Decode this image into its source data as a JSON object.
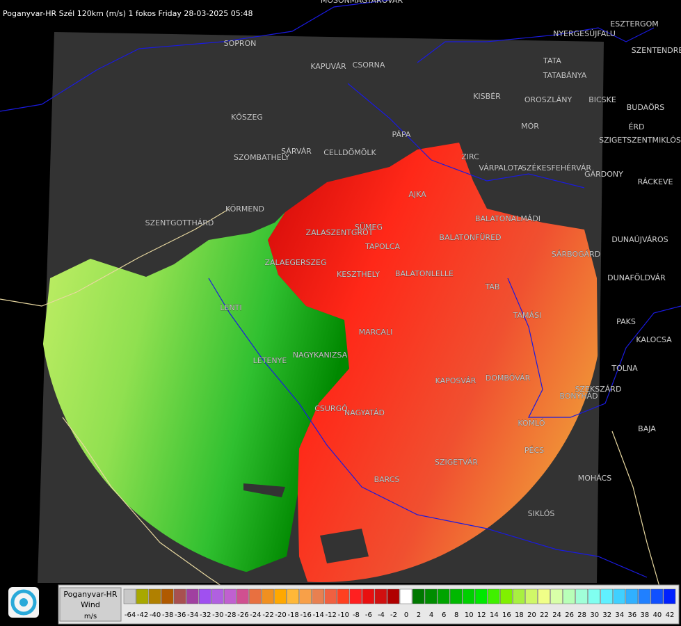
{
  "header": {
    "title": "Poganyvar-HR Szél 120km (m/s) 1 fokos Friday 28-03-2025 05:48"
  },
  "places": [
    "MOSONMAGYARÓVÁR",
    "SOPRON",
    "KAPUVÁR",
    "CSORNA",
    "TATA",
    "TATABÁNYA",
    "ESZTERGOM",
    "NYERGESÚJFALU",
    "SZENTENDRE",
    "KISBÉR",
    "OROSZLÁNY",
    "BICSKE",
    "BUDAÖRS",
    "ÉRD",
    "MÓR",
    "SZIGETSZENTMIKLÓS",
    "KŐSZEG",
    "PÁPA",
    "SÁRVÁR",
    "CELLDÖMÖLK",
    "SZOMBATHELY",
    "ZIRC",
    "VÁRPALOTA",
    "SZÉKESFEHÉRVÁR",
    "GÁRDONY",
    "RÁCKEVE",
    "KÖRMEND",
    "SZENTGOTTHÁRD",
    "AJKA",
    "SÜMEG",
    "ZALASZENTGRÓT",
    "BALATONALMÁDI",
    "BALATONFÜRED",
    "TAPOLCA",
    "DUNAÚJVÁROS",
    "ZALAEGERSZEG",
    "SÁRBOGÁRD",
    "KESZTHELY",
    "BALATONLELLE",
    "DUNAFÖLDVÁR",
    "TAB",
    "TAMÁSI",
    "LENTI",
    "PAKS",
    "MARCALI",
    "KALOCSA",
    "NAGYKANIZSA",
    "LETENYE",
    "TOLNA",
    "KAPOSVÁR",
    "DOMBÓVÁR",
    "SZEKSZÁRD",
    "CSURGÓ",
    "NAGYATÁD",
    "BONYHÁD",
    "KOMLÓ",
    "PÉCS",
    "SZIGETVÁR",
    "BAJA",
    "MOHÁCS",
    "BARCS",
    "SIKLÓS"
  ],
  "legend": {
    "station": "Poganyvar-HR",
    "quantity": "Wind",
    "unit": "m/s",
    "labels": [
      -64,
      -42,
      -40,
      -38,
      -36,
      -34,
      -32,
      -30,
      -28,
      -26,
      -24,
      -22,
      -20,
      -18,
      -16,
      -14,
      -12,
      -10,
      -8,
      -6,
      -4,
      -2,
      0,
      2,
      4,
      6,
      8,
      10,
      12,
      14,
      16,
      18,
      20,
      22,
      24,
      26,
      28,
      30,
      32,
      34,
      36,
      38,
      40,
      42
    ],
    "colors": [
      "#c8c8c8",
      "#a8a800",
      "#b08000",
      "#b05a00",
      "#a85050",
      "#a040a0",
      "#a050f0",
      "#b060e0",
      "#c060d0",
      "#d05090",
      "#e87040",
      "#f09020",
      "#ffa800",
      "#ffb838",
      "#f8a048",
      "#e88050",
      "#f06040",
      "#ff4020",
      "#ff2020",
      "#e81010",
      "#d01010",
      "#b00000",
      "#ffffff",
      "#007800",
      "#008c00",
      "#00a400",
      "#00b800",
      "#00d000",
      "#00e800",
      "#40f000",
      "#80f000",
      "#a8f040",
      "#d0f868",
      "#f0ff88",
      "#d8ffa8",
      "#b8ffb8",
      "#a0ffd8",
      "#80fff0",
      "#60f0ff",
      "#40d0ff",
      "#30b0ff",
      "#2080ff",
      "#1050ff",
      "#0020ff"
    ]
  }
}
